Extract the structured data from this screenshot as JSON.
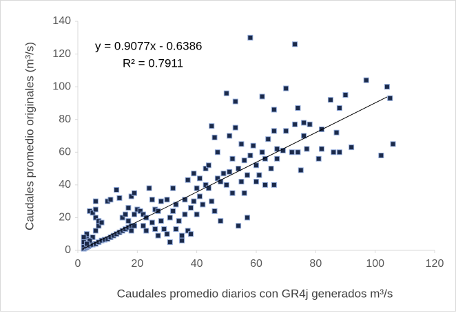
{
  "chart_data": {
    "type": "scatter",
    "x_label": "Caudales  promedio diarios con GR4j generados m³/s",
    "y_label": "Caudales promedio  originales (m³/s)",
    "annotations": [
      "y = 0.9077x - 0.6386",
      "R² = 0.7911"
    ],
    "xlim": [
      0,
      120
    ],
    "xticks": [
      0,
      20,
      40,
      60,
      80,
      100,
      120
    ],
    "ylim": [
      0,
      140
    ],
    "yticks": [
      0,
      20,
      40,
      60,
      80,
      100,
      120,
      140
    ],
    "color": "#1b2a4a",
    "edge_color": "#8fa8d8",
    "trendline": {
      "color": "#000000",
      "x": [
        1.5,
        104
      ],
      "y": [
        0.72,
        93.76
      ]
    },
    "x": [
      2,
      2.5,
      3,
      3.5,
      4,
      5,
      6,
      7,
      8,
      9,
      10,
      11,
      12,
      13,
      14,
      15,
      16,
      17,
      18,
      19,
      2,
      2,
      3,
      3,
      4,
      5,
      6,
      6,
      6,
      7,
      7,
      8,
      6,
      5,
      4,
      2,
      3,
      10,
      11,
      13,
      14,
      15,
      16,
      17,
      18,
      19,
      17,
      18,
      19,
      20,
      21,
      22,
      22,
      23,
      23,
      24,
      25,
      25,
      26,
      26,
      27,
      27,
      28,
      28,
      29,
      30,
      30,
      31,
      31,
      32,
      32,
      33,
      33,
      34,
      35,
      35,
      36,
      36,
      37,
      37,
      38,
      38,
      39,
      39,
      40,
      40,
      41,
      41,
      42,
      43,
      43,
      44,
      44,
      45,
      45,
      46,
      46,
      47,
      47,
      48,
      48,
      49,
      50,
      50,
      51,
      51,
      52,
      52,
      53,
      53,
      54,
      54,
      55,
      55,
      56,
      56,
      57,
      57,
      58,
      58,
      59,
      60,
      60,
      61,
      62,
      62,
      63,
      63,
      64,
      65,
      66,
      66,
      66,
      67,
      67,
      69,
      70,
      70,
      72,
      73,
      73,
      74,
      74,
      75,
      76,
      76,
      77,
      78,
      81,
      82,
      82,
      85,
      86,
      87,
      88,
      88,
      90,
      92,
      97,
      102,
      104,
      105,
      106
    ],
    "values": [
      1,
      1.5,
      2,
      2.5,
      3,
      3.5,
      4,
      5,
      6,
      6.5,
      7,
      8,
      9,
      10,
      11,
      12,
      13,
      14,
      15,
      15,
      3,
      5,
      8,
      10,
      24,
      23,
      30,
      25,
      20,
      18,
      15,
      17,
      12,
      8,
      6,
      8,
      4,
      30,
      31,
      37,
      32,
      20,
      22,
      26,
      33,
      35,
      18,
      12,
      22,
      25,
      24,
      22,
      15,
      12,
      20,
      38,
      31,
      17,
      13,
      25,
      24,
      9,
      18,
      30,
      13,
      31,
      10,
      5,
      20,
      38,
      24,
      28,
      13,
      18,
      9,
      6,
      31,
      22,
      43,
      12,
      26,
      10,
      47,
      30,
      38,
      22,
      44,
      33,
      28,
      50,
      40,
      52,
      38,
      30,
      76,
      69,
      24,
      60,
      44,
      18,
      42,
      47,
      96,
      40,
      70,
      48,
      35,
      56,
      75,
      91,
      15,
      50,
      65,
      42,
      35,
      55,
      20,
      46,
      130,
      58,
      64,
      52,
      42,
      46,
      94,
      60,
      40,
      56,
      68,
      50,
      86,
      73,
      40,
      62,
      56,
      61,
      99,
      73,
      60,
      77,
      126,
      87,
      60,
      49,
      78,
      70,
      62,
      77,
      56,
      62,
      74,
      92,
      60,
      72,
      87,
      60,
      95,
      63,
      104,
      58,
      100,
      93,
      65
    ]
  }
}
